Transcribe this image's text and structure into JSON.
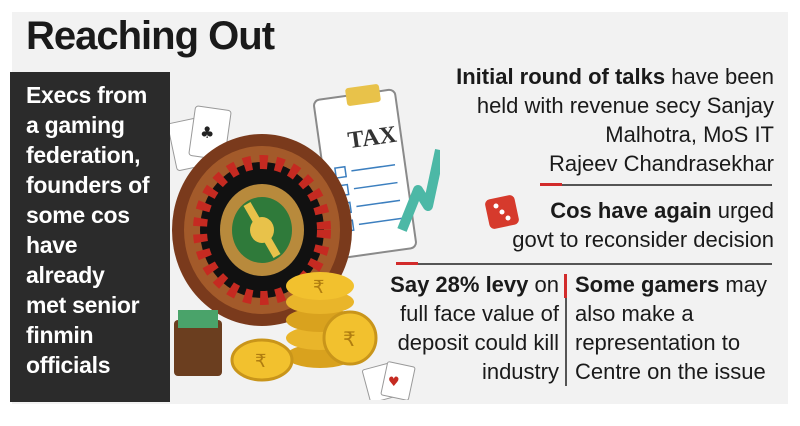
{
  "header": {
    "title": "Reaching Out"
  },
  "sidebar": {
    "lines": [
      "Execs from",
      "a gaming",
      "federation,",
      "founders of",
      "some cos",
      "have",
      "already",
      "met senior",
      "finmin",
      "officials"
    ]
  },
  "illustration": {
    "tax_label": "TAX",
    "coin_symbol": "₹",
    "icons": [
      "roulette-wheel-icon",
      "dice-icon",
      "rupee-coin-icon",
      "tax-clipboard-icon",
      "growth-arrow-icon",
      "playing-cards-icon",
      "wallet-icon"
    ]
  },
  "points": {
    "talks": {
      "bold": "Initial round of talks",
      "rest_line1": " have been",
      "line2": "held with revenue secy Sanjay",
      "line3": "Malhotra, MoS IT",
      "line4": "Rajeev Chandrasekhar"
    },
    "urged": {
      "bold": "Cos have again",
      "rest_line1": " urged",
      "line2": "govt to reconsider decision"
    },
    "levy": {
      "bold": "Say 28% levy",
      "rest_line1": " on",
      "line2": "full face value of",
      "line3": "deposit could kill",
      "line4": "industry"
    },
    "gamers": {
      "bold": "Some gamers",
      "rest_line1": " may",
      "line2": "also make a",
      "line3": "representation to",
      "line4": "Centre on the issue"
    }
  },
  "colors": {
    "accent": "#d22b2b",
    "sidebar_bg": "#2b2b2b",
    "panel_bg": "#f2f2f2",
    "coin": "#f2c12e",
    "arrow": "#4cb8a6"
  }
}
